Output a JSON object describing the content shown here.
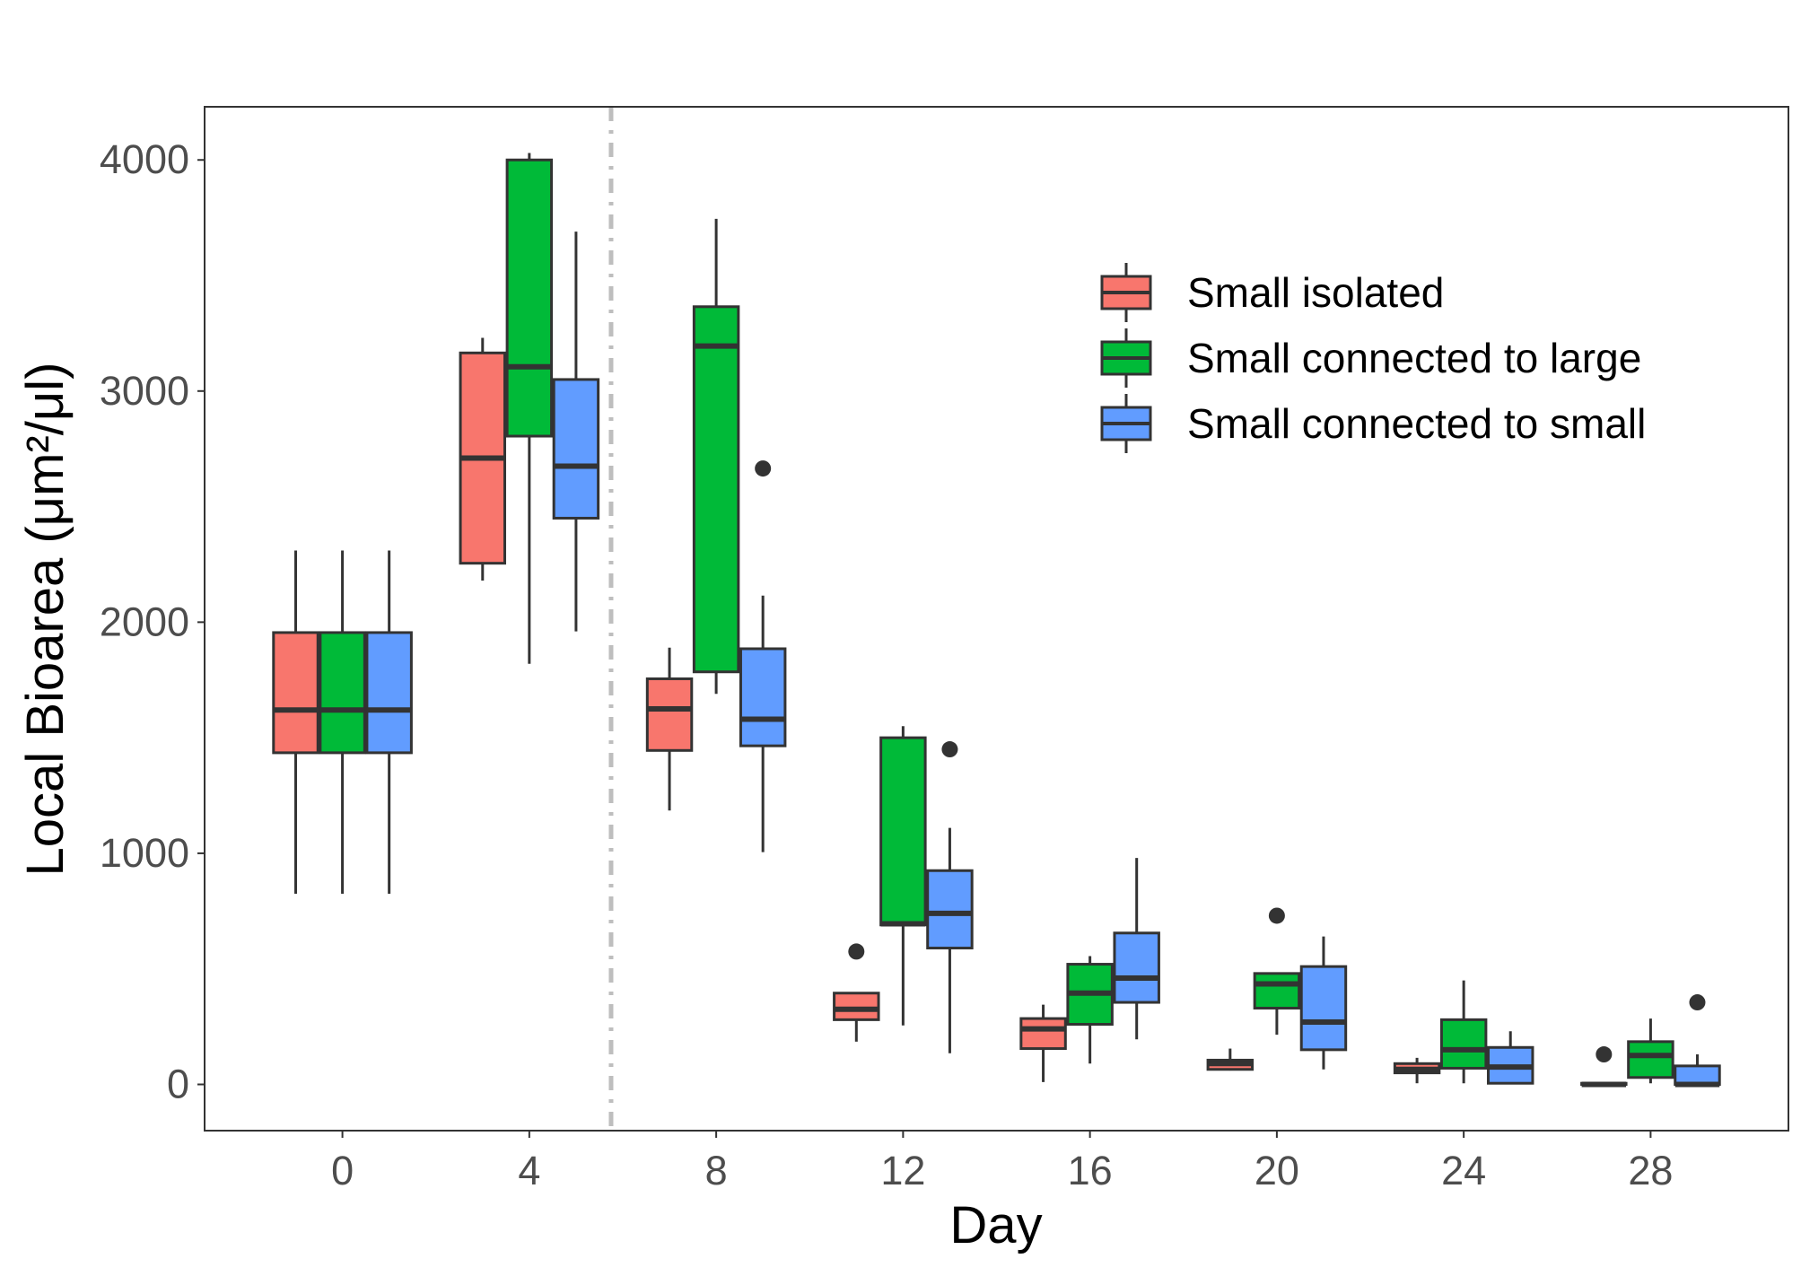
{
  "chart_data": {
    "type": "boxplot",
    "xlabel": "Day",
    "ylabel": "Local Bioarea (μm²/μl)",
    "x_ticks": [
      "0",
      "4",
      "8",
      "12",
      "16",
      "20",
      "24",
      "28"
    ],
    "y_ticks": [
      "0",
      "1000",
      "2000",
      "3000",
      "4000"
    ],
    "xlim": [
      -2.95,
      30.95
    ],
    "ylim": [
      -200,
      4230
    ],
    "grid": false,
    "legend_position": "top-right inside",
    "reference_line": {
      "x": 5.75,
      "style": "dash-dot",
      "color": "#bebebe"
    },
    "series": [
      {
        "name": "Small isolated",
        "color": "#F8766D",
        "boxes": [
          {
            "day": 0,
            "min": 825,
            "q1": 1435,
            "median": 1620,
            "q3": 1955,
            "max": 2310,
            "outliers": []
          },
          {
            "day": 4,
            "min": 2180,
            "q1": 2255,
            "median": 2710,
            "q3": 3165,
            "max": 3230,
            "outliers": []
          },
          {
            "day": 8,
            "min": 1185,
            "q1": 1445,
            "median": 1625,
            "q3": 1755,
            "max": 1890,
            "outliers": []
          },
          {
            "day": 12,
            "min": 185,
            "q1": 280,
            "median": 325,
            "q3": 395,
            "max": 395,
            "outliers": [
              575
            ]
          },
          {
            "day": 16,
            "min": 10,
            "q1": 155,
            "median": 240,
            "q3": 285,
            "max": 345,
            "outliers": []
          },
          {
            "day": 20,
            "min": 60,
            "q1": 65,
            "median": 90,
            "q3": 105,
            "max": 155,
            "outliers": []
          },
          {
            "day": 24,
            "min": 5,
            "q1": 50,
            "median": 65,
            "q3": 90,
            "max": 115,
            "outliers": []
          },
          {
            "day": 28,
            "min": 0,
            "q1": 0,
            "median": 0,
            "q3": 5,
            "max": 10,
            "outliers": [
              130
            ]
          }
        ]
      },
      {
        "name": "Small connected to large",
        "color": "#00BA38",
        "boxes": [
          {
            "day": 0,
            "min": 825,
            "q1": 1435,
            "median": 1620,
            "q3": 1955,
            "max": 2310,
            "outliers": []
          },
          {
            "day": 4,
            "min": 1820,
            "q1": 2805,
            "median": 3105,
            "q3": 4000,
            "max": 4030,
            "outliers": []
          },
          {
            "day": 8,
            "min": 1690,
            "q1": 1785,
            "median": 3195,
            "q3": 3365,
            "max": 3745,
            "outliers": []
          },
          {
            "day": 12,
            "min": 255,
            "q1": 690,
            "median": 695,
            "q3": 1500,
            "max": 1550,
            "outliers": []
          },
          {
            "day": 16,
            "min": 90,
            "q1": 260,
            "median": 395,
            "q3": 520,
            "max": 555,
            "outliers": []
          },
          {
            "day": 20,
            "min": 215,
            "q1": 330,
            "median": 435,
            "q3": 480,
            "max": 480,
            "outliers": [
              730
            ]
          },
          {
            "day": 24,
            "min": 5,
            "q1": 70,
            "median": 150,
            "q3": 280,
            "max": 450,
            "outliers": []
          },
          {
            "day": 28,
            "min": 5,
            "q1": 30,
            "median": 125,
            "q3": 185,
            "max": 285,
            "outliers": []
          }
        ]
      },
      {
        "name": "Small connected to small",
        "color": "#619CFF",
        "boxes": [
          {
            "day": 0,
            "min": 825,
            "q1": 1435,
            "median": 1620,
            "q3": 1955,
            "max": 2310,
            "outliers": []
          },
          {
            "day": 4,
            "min": 1960,
            "q1": 2450,
            "median": 2675,
            "q3": 3050,
            "max": 3690,
            "outliers": []
          },
          {
            "day": 8,
            "min": 1005,
            "q1": 1465,
            "median": 1580,
            "q3": 1885,
            "max": 2115,
            "outliers": [
              2665
            ]
          },
          {
            "day": 12,
            "min": 135,
            "q1": 590,
            "median": 740,
            "q3": 925,
            "max": 1110,
            "outliers": [
              1450
            ]
          },
          {
            "day": 16,
            "min": 195,
            "q1": 355,
            "median": 460,
            "q3": 655,
            "max": 980,
            "outliers": []
          },
          {
            "day": 20,
            "min": 65,
            "q1": 150,
            "median": 270,
            "q3": 510,
            "max": 640,
            "outliers": []
          },
          {
            "day": 24,
            "min": 0,
            "q1": 5,
            "median": 75,
            "q3": 160,
            "max": 230,
            "outliers": []
          },
          {
            "day": 28,
            "min": 0,
            "q1": 0,
            "median": 0,
            "q3": 80,
            "max": 130,
            "outliers": [
              355
            ]
          }
        ]
      }
    ]
  }
}
